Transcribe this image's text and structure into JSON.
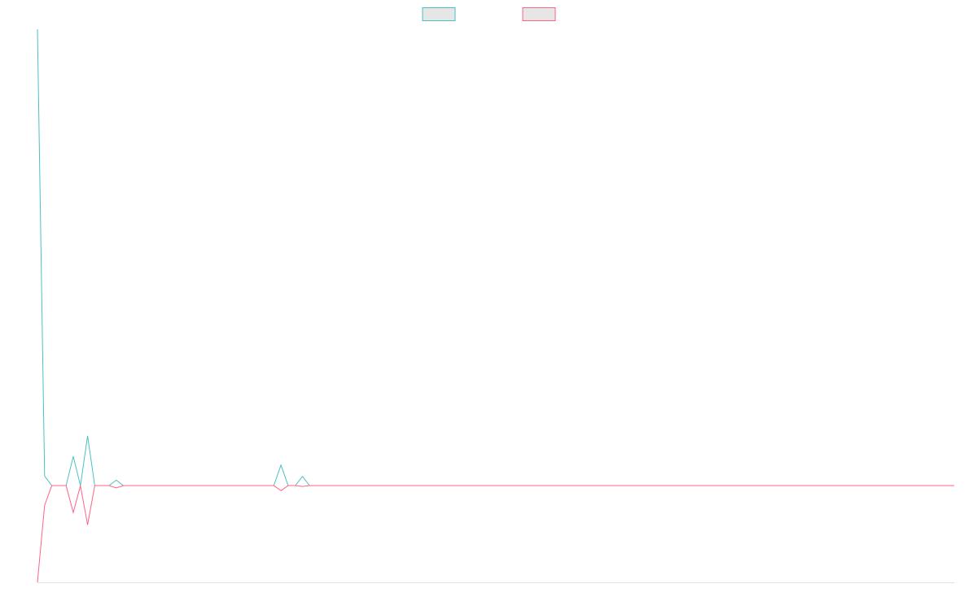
{
  "chart_data": {
    "type": "line",
    "legend": "top",
    "categories": [
      null,
      null,
      null,
      null,
      null,
      null,
      null,
      null,
      null,
      null,
      null,
      null,
      null,
      null,
      null,
      null,
      null,
      null,
      null,
      null,
      null,
      null,
      null,
      null,
      null,
      null,
      null,
      null,
      null,
      null,
      null,
      null,
      null,
      null,
      null,
      null,
      null,
      null,
      null,
      null,
      null,
      null,
      null,
      null,
      null,
      null,
      null,
      null,
      null,
      null,
      null,
      null,
      null,
      null,
      null,
      null,
      null,
      null,
      null,
      null,
      null,
      null,
      null,
      null,
      null,
      null,
      null,
      null,
      null,
      null,
      null,
      null,
      null,
      null,
      null,
      null,
      null,
      null,
      null,
      null,
      null,
      null,
      null,
      null,
      null,
      null,
      null,
      null,
      null,
      null,
      null,
      null,
      null,
      null,
      null,
      null,
      null,
      null,
      null,
      null,
      null,
      null,
      null,
      null,
      null,
      null,
      null,
      null,
      null,
      null,
      null,
      null,
      null,
      null,
      null,
      null,
      null,
      null,
      null,
      null,
      null,
      null,
      null,
      null,
      null,
      null,
      null,
      null,
      null
    ],
    "ylim": [
      -21.2,
      100
    ],
    "series": [
      {
        "color": "#4bc0c0",
        "values": [
          100,
          2.1,
          0,
          0,
          0,
          6.4,
          0,
          10.9,
          0,
          0,
          0,
          1.2,
          0,
          0,
          0,
          0,
          0,
          0,
          0,
          0,
          0,
          0,
          0,
          0,
          0,
          0,
          0,
          0,
          0,
          0,
          0,
          0,
          0,
          0,
          4.5,
          0,
          0,
          2.0,
          0,
          0,
          0,
          0,
          0,
          0,
          0,
          0,
          0,
          0,
          0,
          0,
          0,
          0,
          0,
          0,
          0,
          0,
          0,
          0,
          0,
          0,
          0,
          0,
          0,
          0,
          0,
          0,
          0,
          0,
          0,
          0,
          0,
          0,
          0,
          0,
          0,
          0,
          0,
          0,
          0,
          0,
          0,
          0,
          0,
          0,
          0,
          0,
          0,
          0,
          0,
          0,
          0,
          0,
          0,
          0,
          0,
          0,
          0,
          0,
          0,
          0,
          0,
          0,
          0,
          0,
          0,
          0,
          0,
          0,
          0,
          0,
          0,
          0,
          0,
          0,
          0,
          0,
          0,
          0,
          0,
          0,
          0,
          0,
          0,
          0,
          0,
          0,
          0,
          0,
          0
        ]
      },
      {
        "color": "#ff6384",
        "values": [
          -21.2,
          -4.3,
          0,
          0,
          0,
          -5.9,
          0,
          -8.6,
          0,
          0,
          0,
          -0.5,
          0,
          0,
          0,
          0,
          0,
          0,
          0,
          0,
          0,
          0,
          0,
          0,
          0,
          0,
          0,
          0,
          0,
          0,
          0,
          0,
          0,
          0,
          -1.1,
          0,
          0,
          -0.2,
          0,
          0,
          0,
          0,
          0,
          0,
          0,
          0,
          0,
          0,
          0,
          0,
          0,
          0,
          0,
          0,
          0,
          0,
          0,
          0,
          0,
          0,
          0,
          0,
          0,
          0,
          0,
          0,
          0,
          0,
          0,
          0,
          0,
          0,
          0,
          0,
          0,
          0,
          0,
          0,
          0,
          0,
          0,
          0,
          0,
          0,
          0,
          0,
          0,
          0,
          0,
          0,
          0,
          0,
          0,
          0,
          0,
          0,
          0,
          0,
          0,
          0,
          0,
          0,
          0,
          0,
          0,
          0,
          0,
          0,
          0,
          0,
          0,
          0,
          0,
          0,
          0,
          0,
          0,
          0,
          0,
          0,
          0,
          0,
          0,
          0,
          0,
          0,
          0,
          0,
          0
        ]
      }
    ]
  }
}
